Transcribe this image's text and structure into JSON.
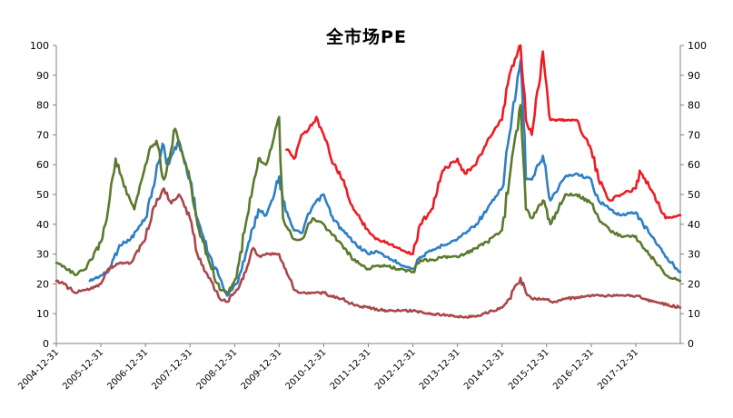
{
  "chart_data": {
    "type": "line",
    "title": "全市场PE",
    "xlabel": "",
    "ylabel": "",
    "ylim": [
      0,
      100
    ],
    "y_ticks": [
      "0",
      "10",
      "20",
      "30",
      "40",
      "50",
      "60",
      "70",
      "80",
      "90",
      "100"
    ],
    "x_range": [
      "2004-12-31",
      "2018-12-31"
    ],
    "x_ticks": [
      "2004-12-31",
      "2005-12-31",
      "2006-12-31",
      "2007-12-31",
      "2008-12-31",
      "2009-12-31",
      "2010-12-31",
      "2011-12-31",
      "2012-12-31",
      "2013-12-31",
      "2014-12-31",
      "2015-12-31",
      "2016-12-31",
      "2017-12-31"
    ],
    "grid": false,
    "legend": "none",
    "series": [
      {
        "color": "#2e7fc6",
        "points": [
          [
            "2005-10-01",
            21
          ],
          [
            "2006-03-01",
            24
          ],
          [
            "2006-06-01",
            33
          ],
          [
            "2006-09-01",
            35
          ],
          [
            "2006-12-31",
            42
          ],
          [
            "2007-03-01",
            52
          ],
          [
            "2007-05-20",
            67
          ],
          [
            "2007-07-01",
            60
          ],
          [
            "2007-10-01",
            68
          ],
          [
            "2007-12-31",
            55
          ],
          [
            "2008-03-01",
            42
          ],
          [
            "2008-06-01",
            30
          ],
          [
            "2008-09-01",
            22
          ],
          [
            "2008-11-01",
            16
          ],
          [
            "2009-01-15",
            20
          ],
          [
            "2009-04-01",
            30
          ],
          [
            "2009-07-15",
            45
          ],
          [
            "2009-09-15",
            43
          ],
          [
            "2009-12-01",
            52
          ],
          [
            "2009-12-31",
            56
          ],
          [
            "2010-02-01",
            48
          ],
          [
            "2010-05-01",
            38
          ],
          [
            "2010-07-01",
            37
          ],
          [
            "2010-10-01",
            46
          ],
          [
            "2010-12-31",
            50
          ],
          [
            "2011-03-01",
            43
          ],
          [
            "2011-06-01",
            38
          ],
          [
            "2011-09-01",
            34
          ],
          [
            "2011-12-31",
            30
          ],
          [
            "2012-03-01",
            31
          ],
          [
            "2012-06-01",
            29
          ],
          [
            "2012-09-01",
            27
          ],
          [
            "2012-12-31",
            25
          ],
          [
            "2013-03-01",
            29
          ],
          [
            "2013-06-01",
            31
          ],
          [
            "2013-09-01",
            33
          ],
          [
            "2013-12-31",
            35
          ],
          [
            "2014-03-01",
            37
          ],
          [
            "2014-06-01",
            40
          ],
          [
            "2014-09-01",
            45
          ],
          [
            "2014-12-31",
            52
          ],
          [
            "2015-03-01",
            70
          ],
          [
            "2015-06-01",
            95
          ],
          [
            "2015-07-15",
            55
          ],
          [
            "2015-09-01",
            55
          ],
          [
            "2015-12-01",
            63
          ],
          [
            "2016-02-01",
            48
          ],
          [
            "2016-06-01",
            56
          ],
          [
            "2016-09-01",
            57
          ],
          [
            "2016-12-31",
            55
          ],
          [
            "2017-03-01",
            48
          ],
          [
            "2017-06-01",
            45
          ],
          [
            "2017-09-01",
            43
          ],
          [
            "2017-12-31",
            44
          ],
          [
            "2018-03-01",
            40
          ],
          [
            "2018-06-01",
            35
          ],
          [
            "2018-09-01",
            29
          ],
          [
            "2018-12-31",
            24
          ]
        ]
      },
      {
        "color": "#ed1c24",
        "points": [
          [
            "2010-03-01",
            65
          ],
          [
            "2010-05-01",
            62
          ],
          [
            "2010-07-01",
            70
          ],
          [
            "2010-09-01",
            72
          ],
          [
            "2010-11-01",
            76
          ],
          [
            "2010-12-31",
            70
          ],
          [
            "2011-03-01",
            62
          ],
          [
            "2011-06-01",
            55
          ],
          [
            "2011-09-01",
            45
          ],
          [
            "2011-12-31",
            38
          ],
          [
            "2012-03-01",
            35
          ],
          [
            "2012-06-01",
            34
          ],
          [
            "2012-09-01",
            32
          ],
          [
            "2012-12-31",
            30
          ],
          [
            "2013-03-01",
            40
          ],
          [
            "2013-06-01",
            45
          ],
          [
            "2013-09-01",
            58
          ],
          [
            "2013-12-31",
            62
          ],
          [
            "2014-03-01",
            57
          ],
          [
            "2014-06-01",
            60
          ],
          [
            "2014-09-01",
            68
          ],
          [
            "2014-12-31",
            75
          ],
          [
            "2015-03-01",
            90
          ],
          [
            "2015-06-01",
            100
          ],
          [
            "2015-07-15",
            75
          ],
          [
            "2015-09-01",
            70
          ],
          [
            "2015-12-01",
            98
          ],
          [
            "2016-02-01",
            75
          ],
          [
            "2016-06-01",
            75
          ],
          [
            "2016-09-01",
            75
          ],
          [
            "2016-12-31",
            65
          ],
          [
            "2017-03-01",
            55
          ],
          [
            "2017-06-01",
            48
          ],
          [
            "2017-09-01",
            50
          ],
          [
            "2017-12-31",
            52
          ],
          [
            "2018-02-01",
            58
          ],
          [
            "2018-06-01",
            50
          ],
          [
            "2018-09-01",
            42
          ],
          [
            "2018-12-31",
            43
          ]
        ]
      },
      {
        "color": "#5b7a2e",
        "points": [
          [
            "2004-12-31",
            27
          ],
          [
            "2005-03-01",
            26
          ],
          [
            "2005-06-01",
            23
          ],
          [
            "2005-09-01",
            25
          ],
          [
            "2005-12-31",
            34
          ],
          [
            "2006-03-01",
            45
          ],
          [
            "2006-05-01",
            62
          ],
          [
            "2006-08-01",
            50
          ],
          [
            "2006-10-01",
            45
          ],
          [
            "2006-12-31",
            60
          ],
          [
            "2007-02-01",
            65
          ],
          [
            "2007-04-01",
            68
          ],
          [
            "2007-06-01",
            55
          ],
          [
            "2007-09-01",
            72
          ],
          [
            "2007-12-31",
            55
          ],
          [
            "2008-03-01",
            40
          ],
          [
            "2008-06-01",
            28
          ],
          [
            "2008-09-01",
            18
          ],
          [
            "2008-11-01",
            17
          ],
          [
            "2009-01-15",
            22
          ],
          [
            "2009-04-01",
            40
          ],
          [
            "2009-07-15",
            62
          ],
          [
            "2009-09-15",
            60
          ],
          [
            "2009-12-01",
            72
          ],
          [
            "2009-12-31",
            76
          ],
          [
            "2010-02-01",
            42
          ],
          [
            "2010-05-01",
            35
          ],
          [
            "2010-07-01",
            35
          ],
          [
            "2010-10-01",
            42
          ],
          [
            "2010-12-31",
            40
          ],
          [
            "2011-03-01",
            37
          ],
          [
            "2011-06-01",
            33
          ],
          [
            "2011-09-01",
            28
          ],
          [
            "2011-12-31",
            25
          ],
          [
            "2012-03-01",
            26
          ],
          [
            "2012-06-01",
            26
          ],
          [
            "2012-09-01",
            25
          ],
          [
            "2012-12-31",
            24
          ],
          [
            "2013-03-01",
            28
          ],
          [
            "2013-06-01",
            28
          ],
          [
            "2013-09-01",
            29
          ],
          [
            "2013-12-31",
            29
          ],
          [
            "2014-03-01",
            30
          ],
          [
            "2014-06-01",
            32
          ],
          [
            "2014-09-01",
            34
          ],
          [
            "2014-12-31",
            38
          ],
          [
            "2015-03-01",
            55
          ],
          [
            "2015-06-01",
            80
          ],
          [
            "2015-07-15",
            45
          ],
          [
            "2015-09-01",
            42
          ],
          [
            "2015-12-01",
            48
          ],
          [
            "2016-02-01",
            40
          ],
          [
            "2016-06-01",
            50
          ],
          [
            "2016-09-01",
            50
          ],
          [
            "2016-12-31",
            47
          ],
          [
            "2017-03-01",
            42
          ],
          [
            "2017-06-01",
            38
          ],
          [
            "2017-09-01",
            36
          ],
          [
            "2017-12-31",
            36
          ],
          [
            "2018-03-01",
            32
          ],
          [
            "2018-06-01",
            28
          ],
          [
            "2018-09-01",
            23
          ],
          [
            "2018-12-31",
            21
          ]
        ]
      },
      {
        "color": "#a9484a",
        "points": [
          [
            "2004-12-31",
            21
          ],
          [
            "2005-03-01",
            20
          ],
          [
            "2005-06-01",
            17
          ],
          [
            "2005-09-01",
            18
          ],
          [
            "2005-12-31",
            20
          ],
          [
            "2006-03-01",
            25
          ],
          [
            "2006-06-01",
            27
          ],
          [
            "2006-09-01",
            27
          ],
          [
            "2006-12-31",
            35
          ],
          [
            "2007-03-01",
            45
          ],
          [
            "2007-06-01",
            52
          ],
          [
            "2007-08-01",
            47
          ],
          [
            "2007-10-01",
            50
          ],
          [
            "2007-12-31",
            42
          ],
          [
            "2008-03-01",
            30
          ],
          [
            "2008-06-01",
            22
          ],
          [
            "2008-09-01",
            15
          ],
          [
            "2008-11-01",
            14
          ],
          [
            "2009-01-15",
            18
          ],
          [
            "2009-04-01",
            24
          ],
          [
            "2009-06-01",
            32
          ],
          [
            "2009-08-01",
            29
          ],
          [
            "2009-10-01",
            30
          ],
          [
            "2009-12-31",
            30
          ],
          [
            "2010-02-01",
            27
          ],
          [
            "2010-05-01",
            18
          ],
          [
            "2010-07-01",
            17
          ],
          [
            "2010-10-01",
            17
          ],
          [
            "2010-12-31",
            17
          ],
          [
            "2011-03-01",
            16
          ],
          [
            "2011-06-01",
            15
          ],
          [
            "2011-09-01",
            13
          ],
          [
            "2011-12-31",
            12
          ],
          [
            "2012-06-01",
            11
          ],
          [
            "2012-12-31",
            11
          ],
          [
            "2013-06-01",
            10
          ],
          [
            "2013-12-31",
            9
          ],
          [
            "2014-06-01",
            9
          ],
          [
            "2014-12-31",
            12
          ],
          [
            "2015-03-01",
            15
          ],
          [
            "2015-06-01",
            22
          ],
          [
            "2015-07-15",
            17
          ],
          [
            "2015-09-01",
            15
          ],
          [
            "2015-12-01",
            15
          ],
          [
            "2016-03-01",
            14
          ],
          [
            "2016-06-01",
            15
          ],
          [
            "2016-12-31",
            16
          ],
          [
            "2017-06-01",
            16
          ],
          [
            "2017-12-31",
            16
          ],
          [
            "2018-06-01",
            14
          ],
          [
            "2018-12-31",
            12
          ]
        ]
      }
    ]
  }
}
